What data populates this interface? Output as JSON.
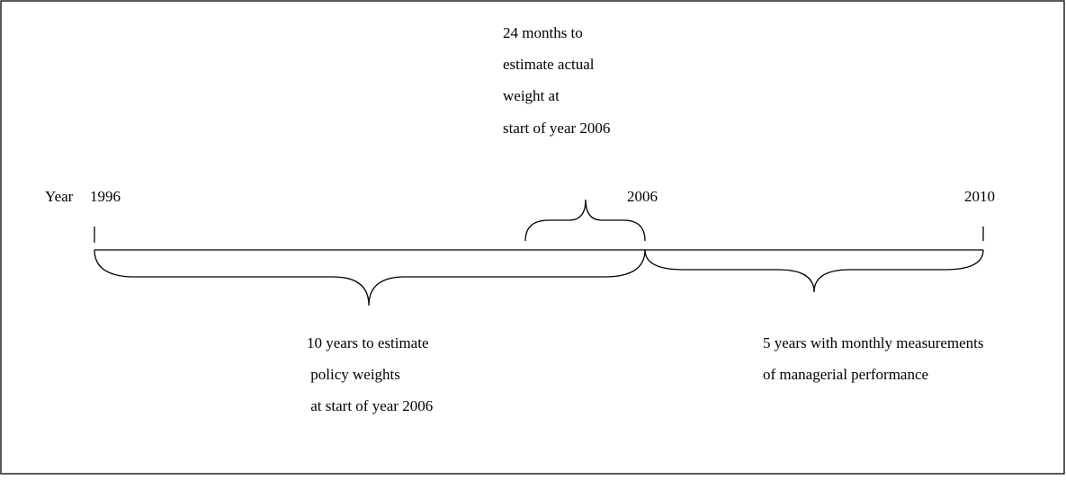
{
  "timeline": {
    "axis_label": "Year",
    "ticks": [
      "1996",
      "2006",
      "2010"
    ]
  },
  "annotations": [
    {
      "lines": [
        "24 months to",
        "estimate actual",
        "weight at",
        "start of year 2006"
      ]
    },
    {
      "lines": [
        "10 years to estimate",
        " policy weights",
        " at start of year 2006"
      ]
    },
    {
      "lines": [
        "5 years with monthly measurements",
        "of managerial performance"
      ]
    }
  ]
}
